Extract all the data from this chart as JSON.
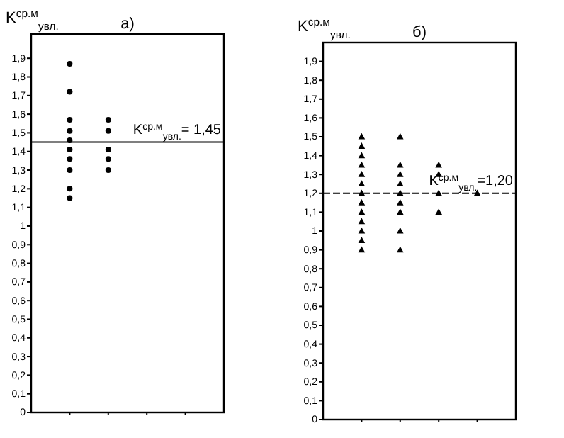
{
  "chart_data": [
    {
      "type": "scatter",
      "title": "а)",
      "ylabel": "K$^{ср.м}$$_{увл.}$",
      "marker": "circle",
      "tick_labels": "y",
      "categories": [
        null,
        null,
        null,
        null
      ],
      "ylim": [
        0,
        2.03
      ],
      "yticks": [
        {
          "value": 0,
          "label": "0"
        },
        {
          "value": 0.1,
          "label": "0,1"
        },
        {
          "value": 0.2,
          "label": "0,2"
        },
        {
          "value": 0.3,
          "label": "0,3"
        },
        {
          "value": 0.4,
          "label": "0,4"
        },
        {
          "value": 0.5,
          "label": "0,5"
        },
        {
          "value": 0.6,
          "label": "0,6"
        },
        {
          "value": 0.7,
          "label": "0,7"
        },
        {
          "value": 0.8,
          "label": "0,8"
        },
        {
          "value": 0.9,
          "label": "0,9"
        },
        {
          "value": 1,
          "label": "1"
        },
        {
          "value": 1.1,
          "label": "1,1"
        },
        {
          "value": 1.2,
          "label": "1,2"
        },
        {
          "value": 1.3,
          "label": "1,3"
        },
        {
          "value": 1.4,
          "label": "1,4"
        },
        {
          "value": 1.5,
          "label": "1,5"
        },
        {
          "value": 1.6,
          "label": "1,6"
        },
        {
          "value": 1.7,
          "label": "1,7"
        },
        {
          "value": 1.8,
          "label": "1,8"
        },
        {
          "value": 1.9,
          "label": "1,9"
        }
      ],
      "series": [
        {
          "color": "#000000",
          "values": [
            1.87,
            1.57,
            null,
            null
          ]
        },
        {
          "color": "#000000",
          "values": [
            1.72,
            1.51,
            null,
            null
          ]
        },
        {
          "color": "#000000",
          "values": [
            1.57,
            1.41,
            null,
            null
          ]
        },
        {
          "color": "#000000",
          "values": [
            1.51,
            1.36,
            null,
            null
          ]
        },
        {
          "color": "#000000",
          "values": [
            1.46,
            1.3,
            null,
            null
          ]
        },
        {
          "color": "#000000",
          "values": [
            1.41,
            null,
            null,
            null
          ]
        },
        {
          "color": "#000000",
          "values": [
            1.36,
            null,
            null,
            null
          ]
        },
        {
          "color": "#000000",
          "values": [
            1.3,
            null,
            null,
            null
          ]
        },
        {
          "color": "#000000",
          "values": [
            1.2,
            null,
            null,
            null
          ]
        },
        {
          "color": "#000000",
          "values": [
            1.15,
            null,
            null,
            null
          ]
        }
      ],
      "ref_lines": [
        {
          "axis": "y",
          "value": 1.45,
          "label": "K$^{ср.м}$$_{увл.}$= 1,45",
          "color": "#000000"
        }
      ]
    },
    {
      "type": "scatter",
      "title": "б)",
      "ylabel": "K$^{ср.м}$$_{увл.}$",
      "marker": "triangle",
      "tick_labels": "y",
      "categories": [
        null,
        null,
        null,
        null
      ],
      "ylim": [
        0,
        2.0
      ],
      "yticks": [
        {
          "value": 0,
          "label": "0"
        },
        {
          "value": 0.1,
          "label": "0,1"
        },
        {
          "value": 0.2,
          "label": "0,2"
        },
        {
          "value": 0.3,
          "label": "0,3"
        },
        {
          "value": 0.4,
          "label": "0,4"
        },
        {
          "value": 0.5,
          "label": "0,5"
        },
        {
          "value": 0.6,
          "label": "0,6"
        },
        {
          "value": 0.7,
          "label": "0,7"
        },
        {
          "value": 0.8,
          "label": "0,8"
        },
        {
          "value": 0.9,
          "label": "0,9"
        },
        {
          "value": 1,
          "label": "1"
        },
        {
          "value": 1.1,
          "label": "1,1"
        },
        {
          "value": 1.2,
          "label": "1,2"
        },
        {
          "value": 1.3,
          "label": "1,3"
        },
        {
          "value": 1.4,
          "label": "1,4"
        },
        {
          "value": 1.5,
          "label": "1,5"
        },
        {
          "value": 1.6,
          "label": "1,6"
        },
        {
          "value": 1.7,
          "label": "1,7"
        },
        {
          "value": 1.8,
          "label": "1,8"
        },
        {
          "value": 1.9,
          "label": "1,9"
        }
      ],
      "series": [
        {
          "color": "#000000",
          "values": [
            1.5,
            1.5,
            1.35,
            1.2
          ]
        },
        {
          "color": "#000000",
          "values": [
            1.45,
            1.35,
            1.3,
            null
          ]
        },
        {
          "color": "#000000",
          "values": [
            1.4,
            1.3,
            1.2,
            null
          ]
        },
        {
          "color": "#000000",
          "values": [
            1.35,
            1.25,
            1.1,
            null
          ]
        },
        {
          "color": "#000000",
          "values": [
            1.3,
            1.2,
            null,
            null
          ]
        },
        {
          "color": "#000000",
          "values": [
            1.25,
            1.15,
            null,
            null
          ]
        },
        {
          "color": "#000000",
          "values": [
            1.2,
            1.1,
            null,
            null
          ]
        },
        {
          "color": "#000000",
          "values": [
            1.15,
            1.0,
            null,
            null
          ]
        },
        {
          "color": "#000000",
          "values": [
            1.1,
            0.9,
            null,
            null
          ]
        },
        {
          "color": "#000000",
          "values": [
            1.05,
            null,
            null,
            null
          ]
        },
        {
          "color": "#000000",
          "values": [
            1.0,
            null,
            null,
            null
          ]
        },
        {
          "color": "#000000",
          "values": [
            0.95,
            null,
            null,
            null
          ]
        },
        {
          "color": "#000000",
          "values": [
            0.9,
            null,
            null,
            null
          ]
        }
      ],
      "ref_lines": [
        {
          "axis": "y",
          "value": 1.2,
          "label": "K$^{ср.м}$$_{увл.}$=1,20",
          "color": "#000000",
          "line_style": "dashed"
        }
      ]
    }
  ]
}
